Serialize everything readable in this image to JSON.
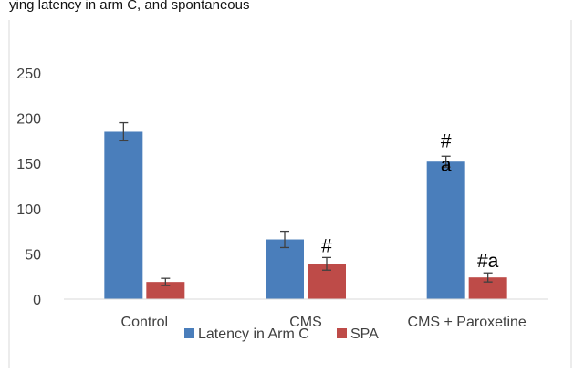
{
  "caption_fragment": "ying latency in arm C, and spontaneous",
  "chart_data": {
    "type": "bar",
    "categories": [
      "Control",
      "CMS",
      "CMS + Paroxetine"
    ],
    "series": [
      {
        "name": "Latency in Arm C",
        "color": "#4a7ebb",
        "values": [
          185,
          66,
          152
        ],
        "errors": [
          10,
          9,
          6
        ],
        "annotations": [
          "",
          "",
          "#\na"
        ]
      },
      {
        "name": "SPA",
        "color": "#be4b48",
        "values": [
          19,
          39,
          24
        ],
        "errors": [
          4,
          7,
          5
        ],
        "annotations": [
          "",
          "#",
          "#a"
        ]
      }
    ],
    "yticks": [
      "0",
      "50",
      "100",
      "150",
      "200",
      "250"
    ],
    "ylim": [
      0,
      250
    ],
    "grid": false,
    "legend_position": "bottom"
  }
}
